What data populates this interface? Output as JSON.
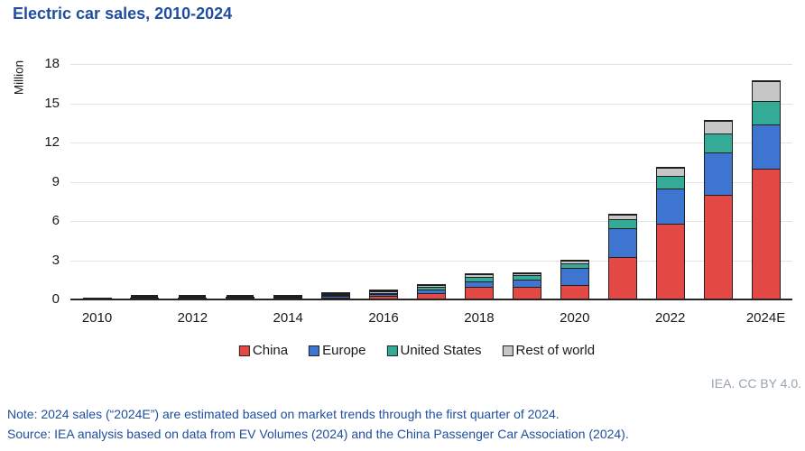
{
  "title": "Electric car sales, 2010-2024",
  "y_axis": {
    "label": "Million"
  },
  "attribution": "IEA. CC BY 4.0.",
  "notes": {
    "line1": "Note: 2024 sales (“2024E”) are estimated based on market trends through the first quarter of 2024.",
    "line2": "Source: IEA analysis based on data from EV Volumes (2024) and the China Passenger Car Association (2024)."
  },
  "chart_data": {
    "type": "bar",
    "stacked": true,
    "title": "Electric car sales, 2010-2024",
    "ylabel": "Million",
    "ylim": [
      0,
      18
    ],
    "y_ticks": [
      0,
      3,
      6,
      9,
      12,
      15,
      18
    ],
    "grid": "horizontal",
    "legend_position": "bottom",
    "categories": [
      "2010",
      "2011",
      "2012",
      "2013",
      "2014",
      "2015",
      "2016",
      "2017",
      "2018",
      "2019",
      "2020",
      "2021",
      "2022",
      "2023",
      "2024E"
    ],
    "x_tick_labels_shown": [
      "2010",
      "2012",
      "2014",
      "2016",
      "2018",
      "2020",
      "2022",
      "2024E"
    ],
    "series": [
      {
        "name": "China",
        "color": "#e54945",
        "values": [
          0.0,
          0.01,
          0.01,
          0.02,
          0.07,
          0.21,
          0.34,
          0.58,
          1.08,
          1.06,
          1.16,
          3.3,
          5.9,
          8.1,
          10.1
        ]
      },
      {
        "name": "Europe",
        "color": "#3d75d0",
        "values": [
          0.0,
          0.01,
          0.03,
          0.07,
          0.1,
          0.19,
          0.21,
          0.31,
          0.41,
          0.59,
          1.4,
          2.3,
          2.7,
          3.3,
          3.4
        ]
      },
      {
        "name": "United States",
        "color": "#33ab96",
        "values": [
          0.0,
          0.02,
          0.05,
          0.1,
          0.12,
          0.11,
          0.16,
          0.2,
          0.36,
          0.33,
          0.3,
          0.63,
          0.99,
          1.4,
          1.8
        ]
      },
      {
        "name": "Rest of world",
        "color": "#c6c6c6",
        "values": [
          0.01,
          0.01,
          0.03,
          0.04,
          0.04,
          0.04,
          0.04,
          0.08,
          0.15,
          0.12,
          0.15,
          0.35,
          0.55,
          0.9,
          1.45
        ]
      }
    ]
  }
}
